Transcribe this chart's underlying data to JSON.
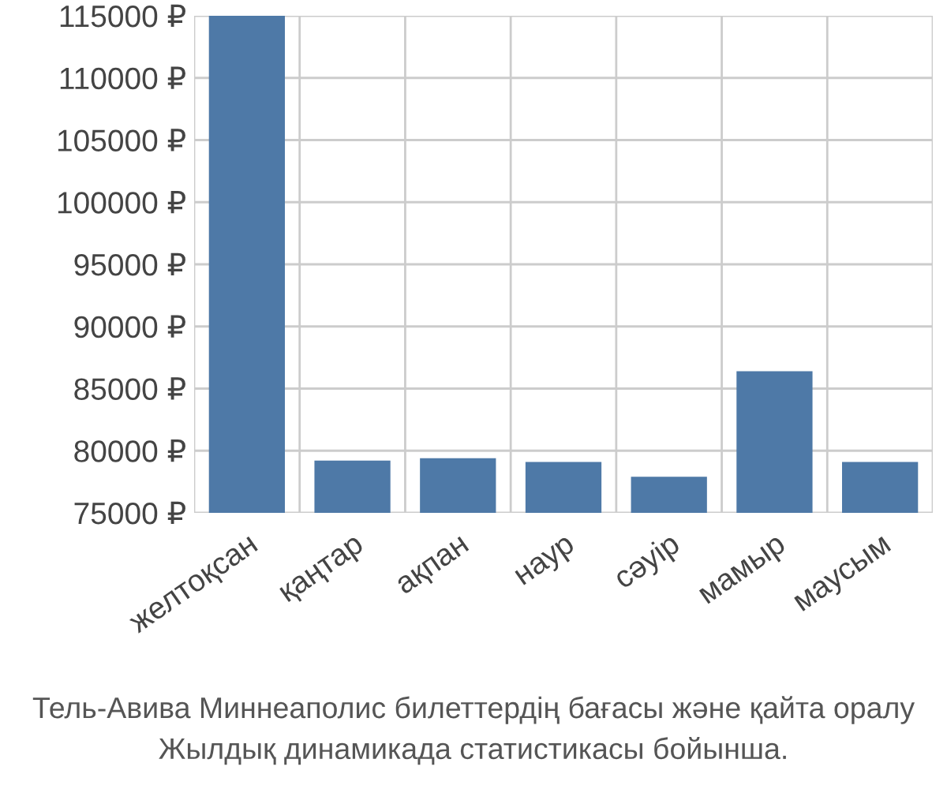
{
  "chart_data": {
    "type": "bar",
    "categories": [
      "желтоқсан",
      "қаңтар",
      "ақпан",
      "наур",
      "сәуір",
      "мамыр",
      "маусым"
    ],
    "values": [
      115000,
      79200,
      79400,
      79100,
      77900,
      86400,
      79100
    ],
    "color": "#4e79a7",
    "ylim": [
      75000,
      115000
    ],
    "yticks": [
      {
        "value": 75000,
        "label": "75000 ₽"
      },
      {
        "value": 80000,
        "label": "80000 ₽"
      },
      {
        "value": 85000,
        "label": "85000 ₽"
      },
      {
        "value": 90000,
        "label": "90000 ₽"
      },
      {
        "value": 95000,
        "label": "95000 ₽"
      },
      {
        "value": 100000,
        "label": "100000 ₽"
      },
      {
        "value": 105000,
        "label": "105000 ₽"
      },
      {
        "value": 110000,
        "label": "110000 ₽"
      },
      {
        "value": 115000,
        "label": "115000 ₽"
      }
    ],
    "grid": true,
    "annotations": [
      "Тель-Авива Миннеаполис билеттердің бағасы және қайта оралу",
      "Жылдық динамикада статистикасы бойынша."
    ]
  }
}
